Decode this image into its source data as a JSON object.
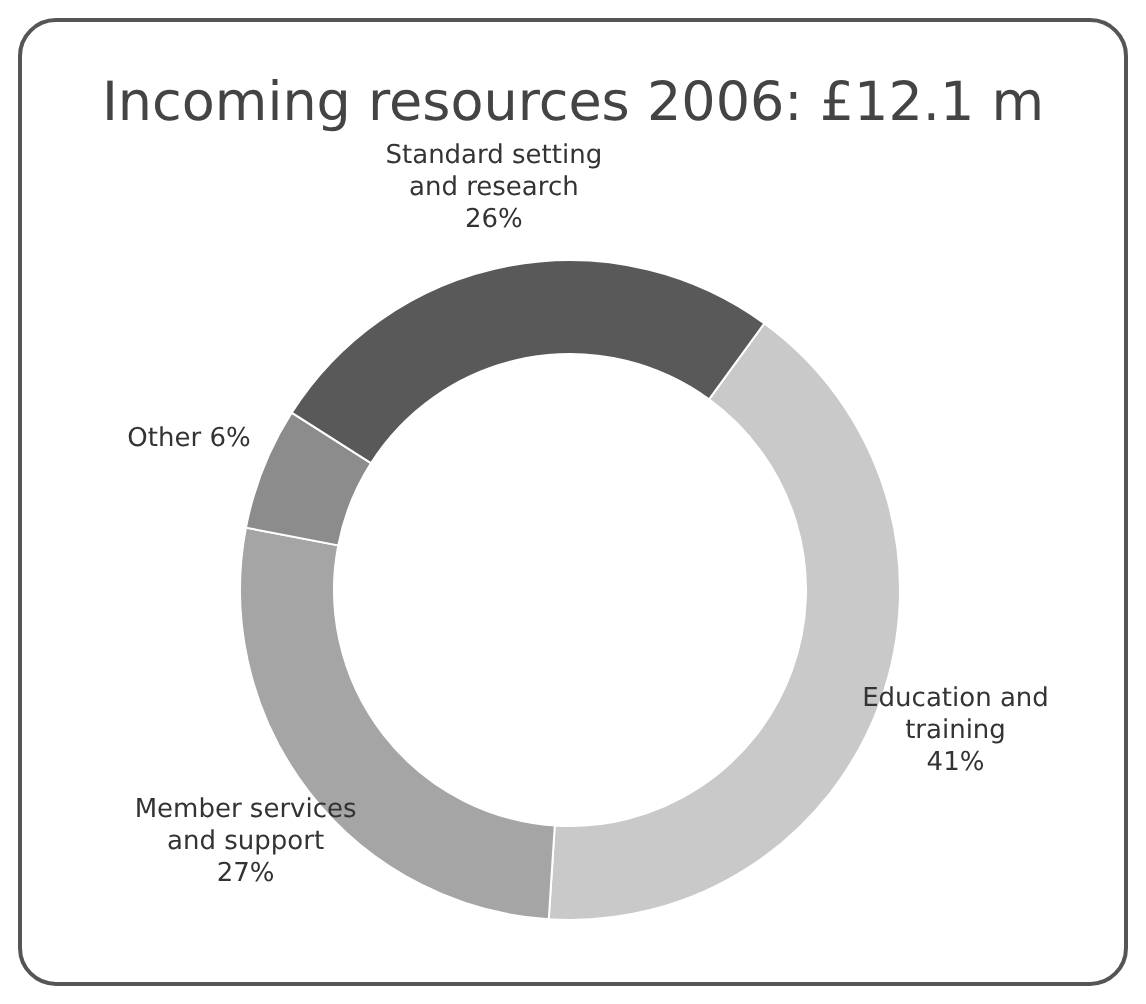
{
  "chart_data": {
    "type": "donut",
    "title": "Incoming resources 2006: £12.1 m",
    "categories": [
      "Education and training",
      "Member services and support",
      "Other",
      "Standard setting and research"
    ],
    "values": [
      41,
      27,
      6,
      26
    ],
    "value_labels": [
      "41%",
      "27%",
      "6%",
      "26%"
    ],
    "colors": [
      "#c9c9c9",
      "#a5a5a5",
      "#8c8c8c",
      "#595959"
    ]
  }
}
